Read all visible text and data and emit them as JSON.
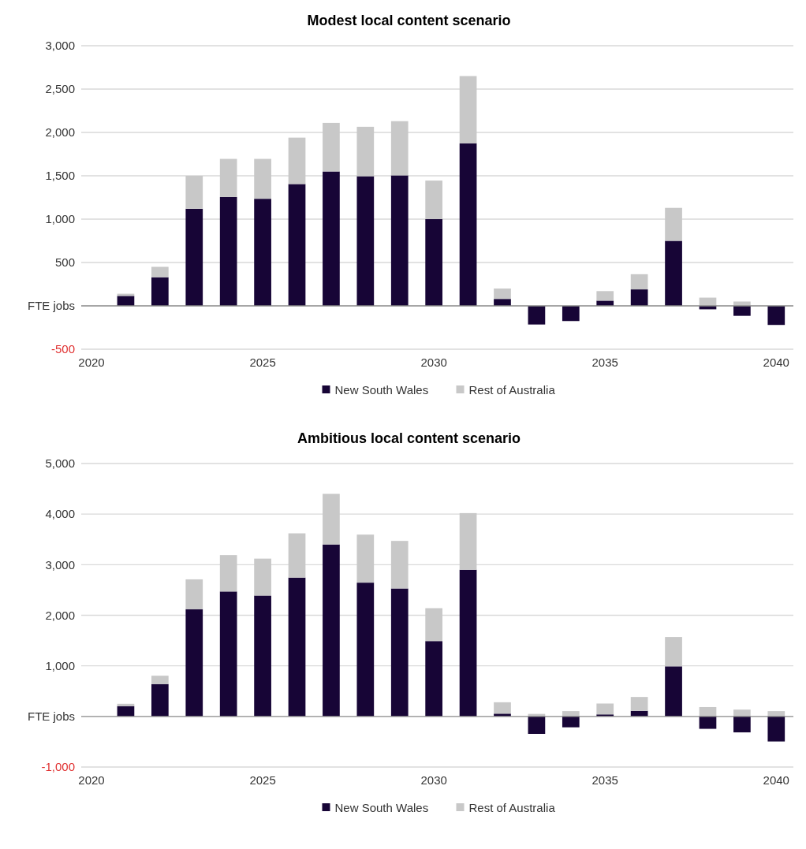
{
  "chart_data": [
    {
      "type": "bar",
      "title": "Modest local content scenario",
      "stacked": true,
      "grid": "y",
      "legend": "bottom",
      "x": [
        2021,
        2022,
        2023,
        2024,
        2025,
        2026,
        2027,
        2028,
        2029,
        2030,
        2031,
        2032,
        2033,
        2034,
        2035,
        2036,
        2037,
        2038,
        2039,
        2040
      ],
      "xlim": [
        2019.7,
        2040.5
      ],
      "xticks": [
        2020,
        2025,
        2030,
        2035,
        2040
      ],
      "ylim": [
        -500,
        3000
      ],
      "yticks": [
        {
          "value": -500,
          "label": "-500"
        },
        {
          "value": 0,
          "label": "FTE jobs"
        },
        {
          "value": 500,
          "label": "500"
        },
        {
          "value": 1000,
          "label": "1,000"
        },
        {
          "value": 1500,
          "label": "1,500"
        },
        {
          "value": 2000,
          "label": "2,000"
        },
        {
          "value": 2500,
          "label": "2,500"
        },
        {
          "value": 3000,
          "label": "3,000"
        }
      ],
      "series": [
        {
          "name": "New South Wales",
          "color": "#170536",
          "values": [
            115,
            330,
            1120,
            1255,
            1235,
            1405,
            1550,
            1495,
            1505,
            1000,
            1875,
            80,
            -215,
            -175,
            60,
            190,
            750,
            -40,
            -115,
            -220
          ]
        },
        {
          "name": "Rest of Australia",
          "color": "#c8c8c8",
          "values": [
            25,
            120,
            380,
            440,
            460,
            535,
            560,
            570,
            625,
            445,
            775,
            120,
            0,
            null,
            110,
            175,
            380,
            95,
            50,
            null
          ]
        }
      ]
    },
    {
      "type": "bar",
      "title": "Ambitious local content scenario",
      "stacked": true,
      "grid": "y",
      "legend": "bottom",
      "x": [
        2021,
        2022,
        2023,
        2024,
        2025,
        2026,
        2027,
        2028,
        2029,
        2030,
        2031,
        2032,
        2033,
        2034,
        2035,
        2036,
        2037,
        2038,
        2039,
        2040
      ],
      "xlim": [
        2019.7,
        2040.5
      ],
      "xticks": [
        2020,
        2025,
        2030,
        2035,
        2040
      ],
      "ylim": [
        -1000,
        5000
      ],
      "yticks": [
        {
          "value": -1000,
          "label": "-1,000"
        },
        {
          "value": 0,
          "label": "FTE jobs"
        },
        {
          "value": 1000,
          "label": "1,000"
        },
        {
          "value": 2000,
          "label": "2,000"
        },
        {
          "value": 3000,
          "label": "3,000"
        },
        {
          "value": 4000,
          "label": "4,000"
        },
        {
          "value": 5000,
          "label": "5,000"
        }
      ],
      "series": [
        {
          "name": "New South Wales",
          "color": "#170536",
          "values": [
            205,
            640,
            2120,
            2470,
            2390,
            2745,
            3400,
            2645,
            2530,
            1490,
            2900,
            55,
            -345,
            -215,
            40,
            110,
            990,
            -245,
            -315,
            -495
          ]
        },
        {
          "name": "Rest of Australia",
          "color": "#c8c8c8",
          "values": [
            45,
            165,
            590,
            720,
            730,
            875,
            1000,
            950,
            940,
            650,
            1120,
            225,
            50,
            105,
            215,
            275,
            580,
            185,
            135,
            105
          ]
        }
      ]
    }
  ]
}
